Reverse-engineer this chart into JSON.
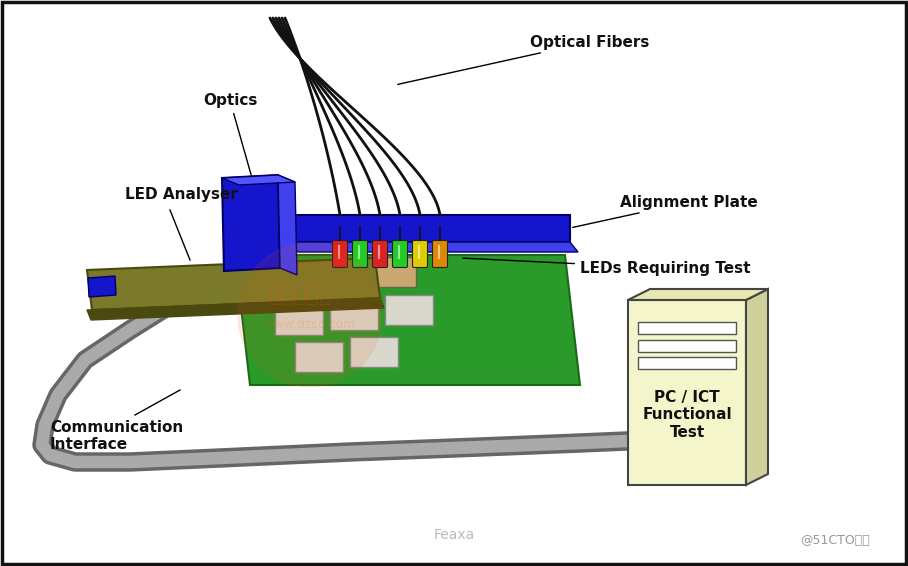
{
  "bg_color": "#ffffff",
  "labels": {
    "optics": "Optics",
    "optical_fibers": "Optical Fibers",
    "led_analyser": "LED Analyser",
    "alignment_plate": "Alignment Plate",
    "leds_requiring_test": "LEDs Requiring Test",
    "communication_interface": "Communication\nInterface",
    "pc_ict": "PC / ICT\nFunctional\nTest"
  },
  "colors": {
    "blue": "#1515cc",
    "blue_light": "#4040ee",
    "olive": "#7a7a2a",
    "olive_dark": "#4a4a10",
    "olive_light": "#9a9a3a",
    "green_pcb": "#2a9a2a",
    "green_dark": "#1a6a1a",
    "pc_body": "#f5f5cc",
    "pc_side": "#d0d09a",
    "pc_top": "#e8e8b0",
    "led_red": "#dd2222",
    "led_green": "#22cc22",
    "led_yellow": "#ddcc00",
    "led_orange": "#dd8800",
    "cable_dark": "#666666",
    "cable_light": "#aaaaaa",
    "pcb_tan": "#c8a870",
    "pcb_silver": "#d8d8cc",
    "watermark": "#ff5500"
  }
}
